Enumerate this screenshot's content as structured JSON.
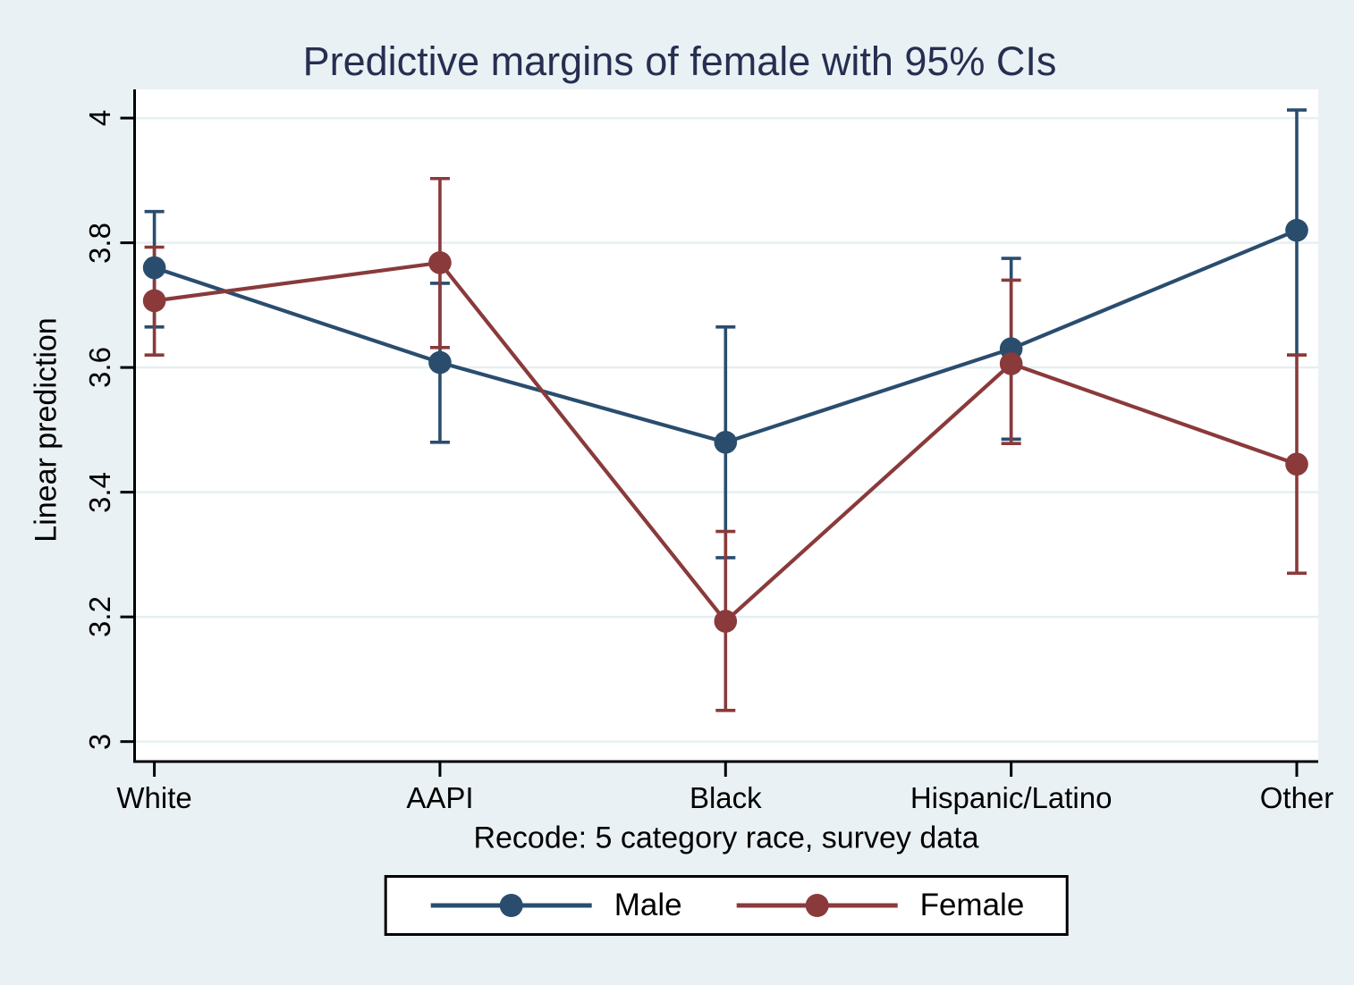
{
  "chart_data": {
    "type": "line",
    "title": "Predictive margins of female with 95% CIs",
    "xlabel": "Recode: 5 category race, survey data",
    "ylabel": "Linear prediction",
    "categories": [
      "White",
      "AAPI",
      "Black",
      "Hispanic/Latino",
      "Other"
    ],
    "yticks": [
      3,
      3.2,
      3.4,
      3.6,
      3.8,
      4
    ],
    "ylim": [
      2.968,
      4.046
    ],
    "grid": true,
    "legend_position": "bottom-center",
    "error_bars": "95% CI",
    "series": [
      {
        "name": "Male",
        "color": "#2a4d6e",
        "values": [
          3.76,
          3.608,
          3.48,
          3.63,
          3.82
        ],
        "ci_low": [
          3.665,
          3.48,
          3.295,
          3.485,
          3.62
        ],
        "ci_high": [
          3.85,
          3.735,
          3.665,
          3.775,
          4.013
        ]
      },
      {
        "name": "Female",
        "color": "#8a3a3b",
        "values": [
          3.707,
          3.768,
          3.193,
          3.606,
          3.445
        ],
        "ci_low": [
          3.62,
          3.632,
          3.05,
          3.478,
          3.27
        ],
        "ci_high": [
          3.793,
          3.903,
          3.337,
          3.74,
          3.62
        ]
      }
    ]
  },
  "colors": {
    "background": "#eaf1f4",
    "plot_background": "#ffffff",
    "gridline": "#e6eff2",
    "axis": "#000000",
    "title_text": "#262f51",
    "male": "#2a4d6e",
    "female": "#8a3a3b"
  }
}
